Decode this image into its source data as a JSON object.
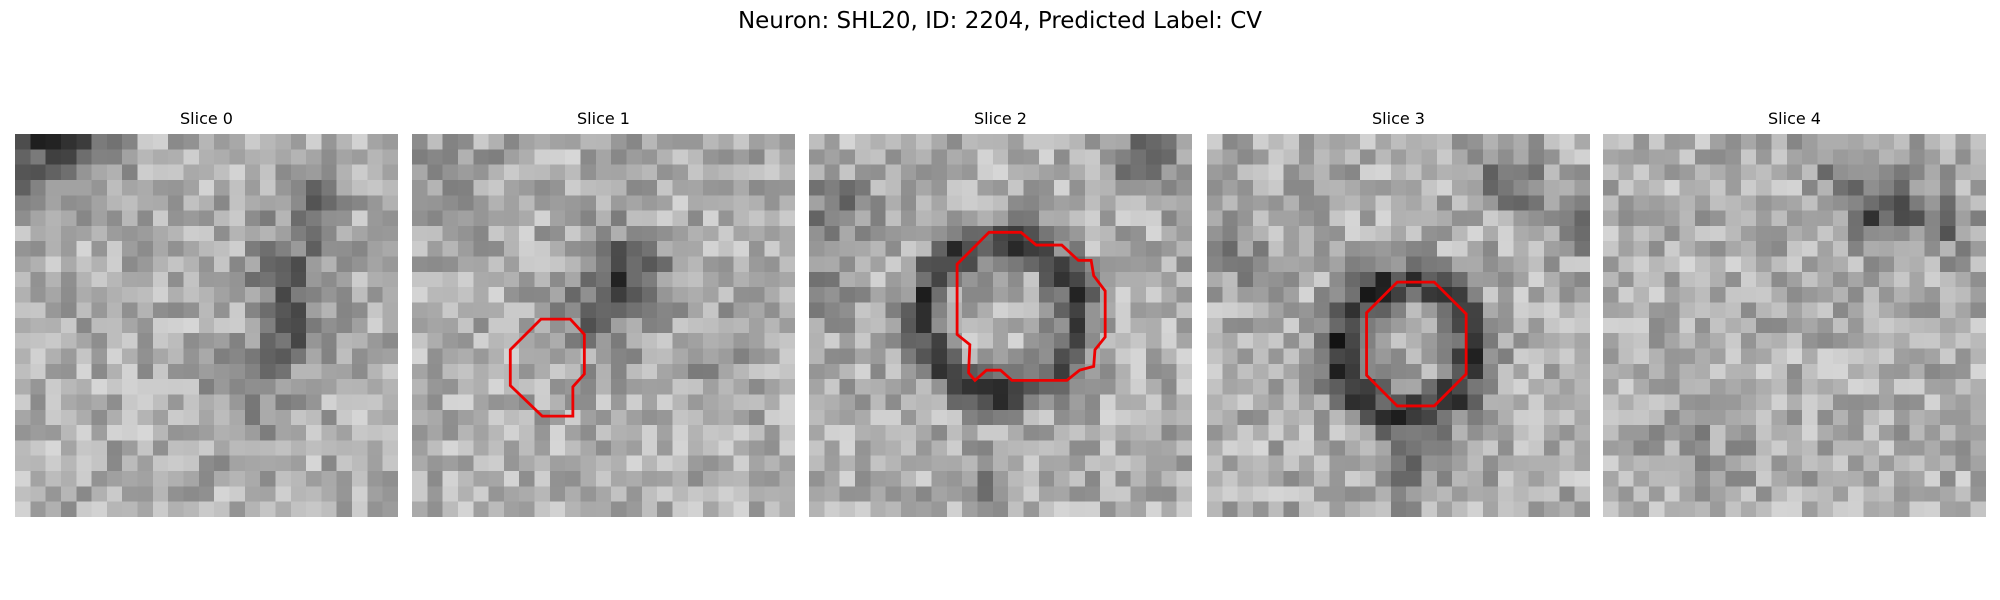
{
  "header": {
    "title": "Neuron: SHL20, ID: 2204, Predicted Label: CV"
  },
  "panels": [
    {
      "title": "Slice 0"
    },
    {
      "title": "Slice 1"
    },
    {
      "title": "Slice 2"
    },
    {
      "title": "Slice 3"
    },
    {
      "title": "Slice 4"
    }
  ]
}
